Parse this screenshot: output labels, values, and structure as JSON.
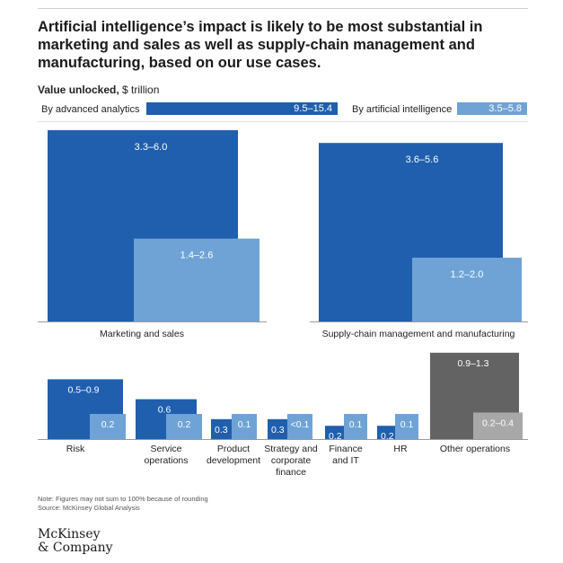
{
  "title": "Artificial intelligence’s impact is likely to be most substantial in marketing and sales as well as supply-chain management and manufacturing, based on our use cases.",
  "subtitle": {
    "bold": "Value unlocked,",
    "unit": "$ trillion"
  },
  "legend": [
    {
      "label": "By advanced analytics",
      "value": "9.5–15.4",
      "color": "#1f5fad"
    },
    {
      "label": "By artificial intelligence",
      "value": "3.5–5.8",
      "color": "#6fa3d6"
    }
  ],
  "colors": {
    "analytics": "#1f5fad",
    "ai": "#6fa3d6",
    "other_dark": "#636363",
    "other_light": "#a8a8a8"
  },
  "chart_data": {
    "type": "bar",
    "title": "Value unlocked, $ trillion",
    "series": [
      {
        "name": "By advanced analytics",
        "total": "9.5–15.4"
      },
      {
        "name": "By artificial intelligence",
        "total": "3.5–5.8"
      }
    ],
    "categories": [
      {
        "name": "Marketing and sales",
        "group": "top",
        "analytics": {
          "label": "3.3–6.0",
          "low": 3.3,
          "high": 6.0
        },
        "ai": {
          "label": "1.4–2.6",
          "low": 1.4,
          "high": 2.6
        }
      },
      {
        "name": "Supply-chain management and manufacturing",
        "group": "top",
        "analytics": {
          "label": "3.6–5.6",
          "low": 3.6,
          "high": 5.6
        },
        "ai": {
          "label": "1.2–2.0",
          "low": 1.2,
          "high": 2.0
        }
      },
      {
        "name": "Risk",
        "group": "bottom",
        "lines": [
          "Risk"
        ],
        "analytics": {
          "label": "0.5–0.9",
          "low": 0.5,
          "high": 0.9
        },
        "ai": {
          "label": "0.2",
          "low": 0.2,
          "high": 0.2
        }
      },
      {
        "name": "Service operations",
        "group": "bottom",
        "lines": [
          "Service",
          "operations"
        ],
        "analytics": {
          "label": "0.6",
          "low": 0.6,
          "high": 0.6
        },
        "ai": {
          "label": "0.2",
          "low": 0.2,
          "high": 0.2
        }
      },
      {
        "name": "Product development",
        "group": "bottom",
        "lines": [
          "Product",
          "development"
        ],
        "analytics": {
          "label": "0.3",
          "low": 0.3,
          "high": 0.3
        },
        "ai": {
          "label": "0.1",
          "low": 0.1,
          "high": 0.1
        }
      },
      {
        "name": "Strategy and corporate finance",
        "group": "bottom",
        "lines": [
          "Strategy and",
          "corporate",
          "finance"
        ],
        "analytics": {
          "label": "0.3",
          "low": 0.3,
          "high": 0.3
        },
        "ai": {
          "label": "<0.1",
          "low": 0.05,
          "high": 0.05
        }
      },
      {
        "name": "Finance and IT",
        "group": "bottom",
        "lines": [
          "Finance",
          "and IT"
        ],
        "analytics": {
          "label": "0.2",
          "low": 0.2,
          "high": 0.2
        },
        "ai": {
          "label": "0.1",
          "low": 0.1,
          "high": 0.1
        }
      },
      {
        "name": "HR",
        "group": "bottom",
        "lines": [
          "HR"
        ],
        "analytics": {
          "label": "0.2",
          "low": 0.2,
          "high": 0.2
        },
        "ai": {
          "label": "0.1",
          "low": 0.1,
          "high": 0.1
        }
      },
      {
        "name": "Other operations",
        "group": "bottom",
        "lines": [
          "Other operations"
        ],
        "grey": true,
        "analytics": {
          "label": "0.9–1.3",
          "low": 0.9,
          "high": 1.3
        },
        "ai": {
          "label": "0.2–0.4",
          "low": 0.2,
          "high": 0.4
        }
      }
    ]
  },
  "note": "Note: Figures may not sum to 100% because of rounding",
  "source": "Source: McKinsey Global Analysis",
  "logo": {
    "line1": "McKinsey",
    "line2": "& Company"
  }
}
